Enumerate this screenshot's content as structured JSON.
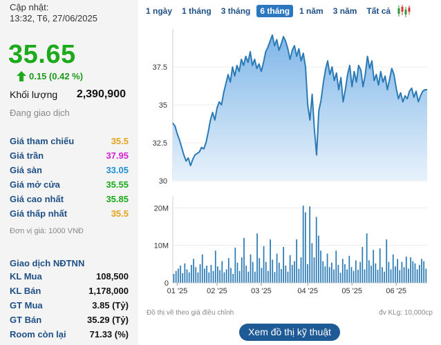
{
  "quote": {
    "updated_label": "Cập nhật:",
    "updated_time": "13:32, T6, 27/06/2025",
    "price": "35.65",
    "change": "0.15 (0.42 %)",
    "volume_label": "Khối lượng",
    "volume_value": "2,390,900",
    "status": "Đang giao dịch",
    "unit_note": "Đơn vị giá: 1000 VNĐ",
    "colors": {
      "up": "#1aaa1a",
      "ceiling": "#d11fd1",
      "floor": "#1e8fd6",
      "ref": "#e6a21a"
    }
  },
  "prices": [
    {
      "label": "Giá tham chiếu",
      "value": "35.5",
      "color": "#e6a21a"
    },
    {
      "label": "Giá trần",
      "value": "37.95",
      "color": "#d11fd1"
    },
    {
      "label": "Giá sàn",
      "value": "33.05",
      "color": "#1e8fd6"
    },
    {
      "label": "Giá mở cửa",
      "value": "35.55",
      "color": "#1aaa1a"
    },
    {
      "label": "Giá cao nhất",
      "value": "35.85",
      "color": "#1aaa1a"
    },
    {
      "label": "Giá thấp nhất",
      "value": "35.5",
      "color": "#e6a21a"
    }
  ],
  "foreign": {
    "title": "Giao dịch NĐTNN",
    "rows": [
      {
        "label": "KL Mua",
        "value": "108,500"
      },
      {
        "label": "KL Bán",
        "value": "1,178,000"
      },
      {
        "label": "GT Mua",
        "value": "3.85 (Tỷ)"
      },
      {
        "label": "GT Bán",
        "value": "35.29 (Tỷ)"
      },
      {
        "label": "Room còn lại",
        "value": "71.33 (%)"
      }
    ]
  },
  "tabs": [
    "1 ngày",
    "1 tháng",
    "3 tháng",
    "6 tháng",
    "1 năm",
    "3 năm",
    "Tất cả"
  ],
  "active_tab": 3,
  "candle_icon": "candlestick-icon",
  "footer": {
    "note_left": "Đồ thị vẽ theo giá điều chỉnh",
    "note_right": "đv KLg: 10,000cp",
    "button": "Xem đồ thị kỹ thuật"
  },
  "chart_data": [
    {
      "type": "area",
      "ylim": [
        30,
        40
      ],
      "yticks": [
        30,
        32.5,
        35,
        37.5
      ],
      "ytick_labels": [
        "30",
        "32.5",
        "35",
        "37.5"
      ],
      "xtick_labels": [
        "01 '25",
        "02 '25",
        "03 '25",
        "04 '25",
        "05 '25",
        "06 '25"
      ],
      "xtick_index": [
        2,
        20,
        40,
        61,
        81,
        101
      ],
      "grid": true,
      "values": [
        33.8,
        33.6,
        33.1,
        32.7,
        32.2,
        31.7,
        31.3,
        31.5,
        31.0,
        31.4,
        31.7,
        31.8,
        31.9,
        32.2,
        32.1,
        32.5,
        33.2,
        34.0,
        34.5,
        34.0,
        34.8,
        35.2,
        35.0,
        35.8,
        36.4,
        37.0,
        36.5,
        37.5,
        36.9,
        37.6,
        37.2,
        38.0,
        37.6,
        38.2,
        37.8,
        38.5,
        37.6,
        38.0,
        37.4,
        37.7,
        37.2,
        37.8,
        38.5,
        38.8,
        39.2,
        39.6,
        38.9,
        39.3,
        38.6,
        39.0,
        39.5,
        39.2,
        38.7,
        38.0,
        38.6,
        38.9,
        38.2,
        38.7,
        37.9,
        38.4,
        37.5,
        35.0,
        34.0,
        35.7,
        33.4,
        31.7,
        34.6,
        35.3,
        36.4,
        37.3,
        37.9,
        37.0,
        37.5,
        36.6,
        37.1,
        36.0,
        36.8,
        35.2,
        36.0,
        37.0,
        37.6,
        36.2,
        37.2,
        36.5,
        37.6,
        37.3,
        36.2,
        37.0,
        38.2,
        37.4,
        37.9,
        36.6,
        37.0,
        36.3,
        37.2,
        36.5,
        36.9,
        36.0,
        36.7,
        37.4,
        37.0,
        36.1,
        35.4,
        35.8,
        35.2,
        35.6,
        35.4,
        35.9,
        36.1,
        35.5,
        35.9,
        35.2,
        35.6,
        35.9,
        36.0,
        36.0
      ],
      "line_color": "#2a7ab5"
    },
    {
      "type": "bar",
      "ylim": [
        0,
        23
      ],
      "yticks": [
        0,
        10,
        20
      ],
      "ytick_labels": [
        "0",
        "10M",
        "20M"
      ],
      "grid": true,
      "values": [
        2.4,
        3.2,
        3.8,
        4.6,
        2.6,
        5.2,
        3.6,
        2.8,
        4.8,
        6.4,
        4.2,
        2.8,
        5.0,
        7.6,
        3.8,
        4.6,
        2.8,
        4.8,
        3.2,
        8.6,
        4.4,
        3.4,
        5.8,
        2.8,
        3.6,
        6.6,
        4.0,
        2.4,
        9.4,
        5.4,
        3.2,
        6.8,
        12.0,
        4.6,
        3.0,
        7.6,
        5.6,
        3.0,
        13.2,
        6.6,
        4.0,
        9.8,
        5.6,
        3.2,
        11.6,
        6.2,
        2.9,
        7.8,
        5.4,
        3.7,
        9.6,
        4.6,
        3.0,
        7.4,
        4.8,
        5.8,
        11.6,
        3.8,
        6.8,
        20.6,
        18.8,
        5.0,
        20.4,
        10.6,
        6.8,
        17.6,
        12.6,
        8.6,
        5.8,
        4.4,
        7.8,
        4.2,
        5.4,
        3.6,
        8.6,
        4.8,
        2.7,
        6.4,
        5.0,
        3.6,
        7.2,
        4.2,
        3.2,
        6.0,
        3.5,
        5.6,
        9.6,
        3.6,
        13.2,
        6.0,
        4.6,
        8.8,
        5.2,
        3.5,
        9.2,
        4.2,
        3.0,
        11.6,
        5.6,
        3.6,
        7.6,
        4.4,
        6.4,
        3.4,
        5.6,
        4.2,
        7.0,
        3.8,
        6.8,
        5.8,
        5.2,
        3.6,
        4.8,
        6.4,
        5.8,
        3.8
      ],
      "bar_color": "#2a7ab5"
    }
  ]
}
